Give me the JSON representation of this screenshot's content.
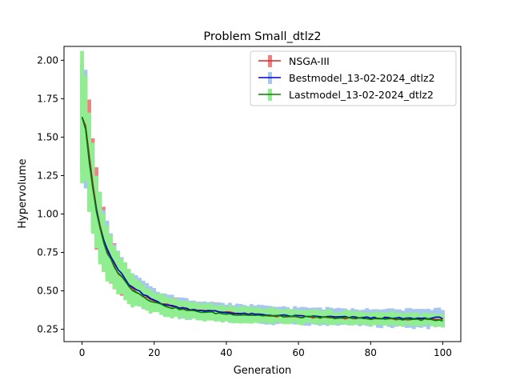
{
  "chart_data": {
    "type": "line",
    "title": "Problem Small_dtlz2",
    "xlabel": "Generation",
    "ylabel": "Hypervolume",
    "xlim": [
      -5,
      105
    ],
    "ylim": [
      0.17,
      2.09
    ],
    "x_ticks": [
      0,
      20,
      40,
      60,
      80,
      100
    ],
    "x_tick_labels": [
      "0",
      "20",
      "40",
      "60",
      "80",
      "100"
    ],
    "y_ticks": [
      0.25,
      0.5,
      0.75,
      1.0,
      1.25,
      1.5,
      1.75,
      2.0
    ],
    "y_tick_labels": [
      "0.25",
      "0.50",
      "0.75",
      "1.00",
      "1.25",
      "1.50",
      "1.75",
      "2.00"
    ],
    "grid": false,
    "legend_position": "top-right",
    "x_range": [
      0,
      100
    ],
    "series": [
      {
        "name": "NSGA-III",
        "line_color": "#d62728",
        "band_color": "#f08080",
        "mean_keypoints": [
          [
            0,
            1.63
          ],
          [
            1,
            1.57
          ],
          [
            2,
            1.38
          ],
          [
            3,
            1.2
          ],
          [
            4,
            1.04
          ],
          [
            5,
            0.92
          ],
          [
            6,
            0.83
          ],
          [
            7,
            0.76
          ],
          [
            8,
            0.71
          ],
          [
            9,
            0.66
          ],
          [
            10,
            0.62
          ],
          [
            12,
            0.56
          ],
          [
            14,
            0.51
          ],
          [
            16,
            0.48
          ],
          [
            18,
            0.45
          ],
          [
            20,
            0.43
          ],
          [
            22,
            0.42
          ],
          [
            25,
            0.4
          ],
          [
            30,
            0.38
          ],
          [
            35,
            0.37
          ],
          [
            40,
            0.36
          ],
          [
            45,
            0.35
          ],
          [
            50,
            0.34
          ],
          [
            55,
            0.335
          ],
          [
            60,
            0.33
          ],
          [
            70,
            0.325
          ],
          [
            80,
            0.32
          ],
          [
            90,
            0.315
          ],
          [
            100,
            0.315
          ]
        ],
        "std_keypoints": [
          [
            0,
            0.39
          ],
          [
            2,
            0.33
          ],
          [
            4,
            0.25
          ],
          [
            6,
            0.2
          ],
          [
            8,
            0.15
          ],
          [
            10,
            0.12
          ],
          [
            15,
            0.08
          ],
          [
            20,
            0.06
          ],
          [
            30,
            0.05
          ],
          [
            60,
            0.04
          ],
          [
            100,
            0.04
          ]
        ]
      },
      {
        "name": "Bestmodel_13-02-2024_dtlz2",
        "line_color": "#0000cc",
        "band_color": "#a6c8f0",
        "mean_keypoints": [
          [
            0,
            1.63
          ],
          [
            1,
            1.56
          ],
          [
            2,
            1.35
          ],
          [
            3,
            1.17
          ],
          [
            4,
            1.02
          ],
          [
            5,
            0.91
          ],
          [
            6,
            0.83
          ],
          [
            7,
            0.77
          ],
          [
            8,
            0.72
          ],
          [
            9,
            0.68
          ],
          [
            10,
            0.64
          ],
          [
            12,
            0.57
          ],
          [
            14,
            0.52
          ],
          [
            16,
            0.49
          ],
          [
            18,
            0.46
          ],
          [
            20,
            0.44
          ],
          [
            22,
            0.42
          ],
          [
            25,
            0.4
          ],
          [
            30,
            0.38
          ],
          [
            35,
            0.37
          ],
          [
            40,
            0.36
          ],
          [
            45,
            0.35
          ],
          [
            50,
            0.345
          ],
          [
            55,
            0.34
          ],
          [
            60,
            0.335
          ],
          [
            70,
            0.33
          ],
          [
            80,
            0.325
          ],
          [
            90,
            0.32
          ],
          [
            100,
            0.325
          ]
        ],
        "std_keypoints": [
          [
            0,
            0.37
          ],
          [
            2,
            0.32
          ],
          [
            4,
            0.25
          ],
          [
            6,
            0.19
          ],
          [
            8,
            0.15
          ],
          [
            10,
            0.12
          ],
          [
            15,
            0.09
          ],
          [
            20,
            0.07
          ],
          [
            30,
            0.06
          ],
          [
            60,
            0.055
          ],
          [
            100,
            0.06
          ]
        ]
      },
      {
        "name": "Lastmodel_13-02-2024_dtlz2",
        "line_color": "#008000",
        "band_color": "#90ee90",
        "mean_keypoints": [
          [
            0,
            1.63
          ],
          [
            1,
            1.56
          ],
          [
            2,
            1.34
          ],
          [
            3,
            1.16
          ],
          [
            4,
            1.01
          ],
          [
            5,
            0.9
          ],
          [
            6,
            0.81
          ],
          [
            7,
            0.75
          ],
          [
            8,
            0.7
          ],
          [
            9,
            0.66
          ],
          [
            10,
            0.62
          ],
          [
            12,
            0.56
          ],
          [
            14,
            0.51
          ],
          [
            16,
            0.48
          ],
          [
            18,
            0.45
          ],
          [
            20,
            0.43
          ],
          [
            22,
            0.41
          ],
          [
            25,
            0.39
          ],
          [
            30,
            0.37
          ],
          [
            35,
            0.36
          ],
          [
            40,
            0.35
          ],
          [
            45,
            0.345
          ],
          [
            50,
            0.34
          ],
          [
            55,
            0.335
          ],
          [
            60,
            0.33
          ],
          [
            70,
            0.325
          ],
          [
            80,
            0.32
          ],
          [
            90,
            0.315
          ],
          [
            100,
            0.31
          ]
        ],
        "std_keypoints": [
          [
            0,
            0.39
          ],
          [
            2,
            0.33
          ],
          [
            4,
            0.26
          ],
          [
            6,
            0.2
          ],
          [
            8,
            0.16
          ],
          [
            10,
            0.13
          ],
          [
            15,
            0.09
          ],
          [
            20,
            0.07
          ],
          [
            30,
            0.055
          ],
          [
            60,
            0.045
          ],
          [
            100,
            0.04
          ]
        ]
      }
    ]
  }
}
